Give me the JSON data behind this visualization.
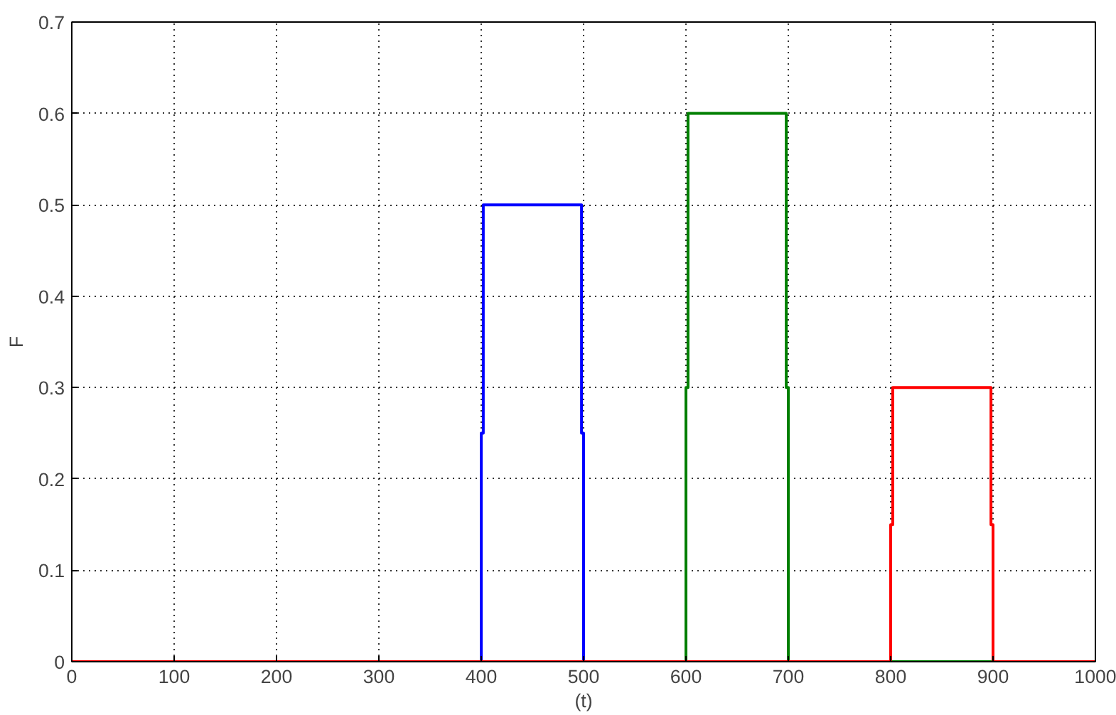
{
  "chart_data": {
    "type": "line",
    "xlabel": "(t)",
    "ylabel": "F",
    "xlim": [
      0,
      1000
    ],
    "ylim": [
      0,
      0.7
    ],
    "xticks": [
      0,
      100,
      200,
      300,
      400,
      500,
      600,
      700,
      800,
      900,
      1000
    ],
    "yticks": [
      0,
      0.1,
      0.2,
      0.3,
      0.4,
      0.5,
      0.6,
      0.7
    ],
    "grid": true,
    "line_style": "solid",
    "series": [
      {
        "color": "#0000ff",
        "x": [
          0,
          400,
          400,
          402,
          402,
          498,
          498,
          500,
          500,
          1000
        ],
        "values": [
          0,
          0,
          0.25,
          0.25,
          0.5,
          0.5,
          0.25,
          0.25,
          0,
          0
        ]
      },
      {
        "color": "#007f00",
        "x": [
          0,
          600,
          600,
          602,
          602,
          698,
          698,
          700,
          700,
          1000
        ],
        "values": [
          0,
          0,
          0.3,
          0.3,
          0.6,
          0.6,
          0.3,
          0.3,
          0,
          0
        ]
      },
      {
        "color": "#ff0000",
        "x": [
          0,
          800,
          800,
          802,
          802,
          898,
          898,
          900,
          900,
          1000
        ],
        "values": [
          0,
          0,
          0.15,
          0.15,
          0.3,
          0.3,
          0.15,
          0.15,
          0,
          0
        ]
      }
    ]
  }
}
